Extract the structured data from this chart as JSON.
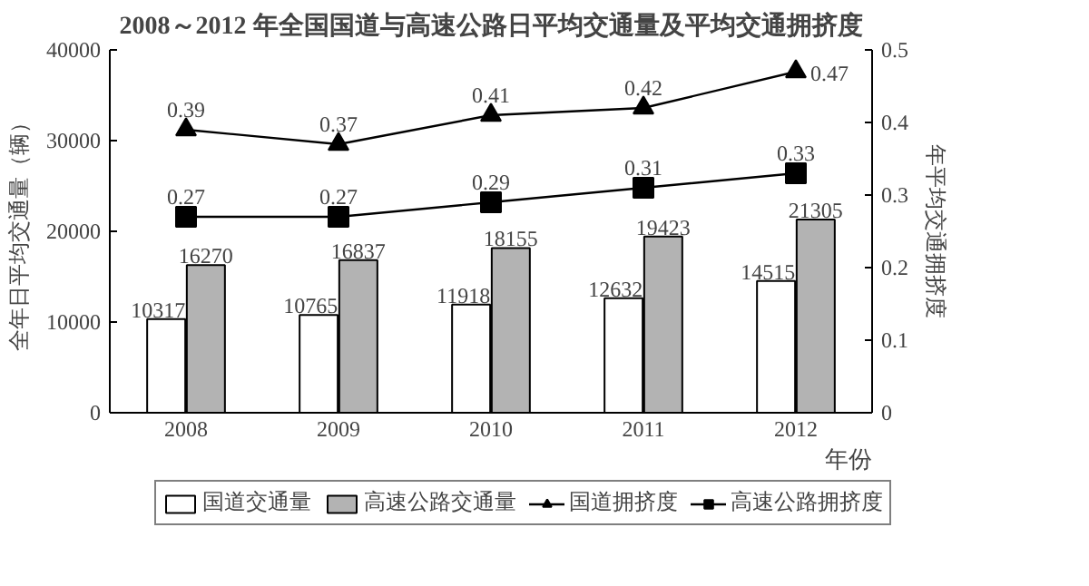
{
  "chart_data": {
    "type": "bar",
    "title": "2008～2012 年全国国道与高速公路日平均交通量及平均交通拥挤度",
    "categories": [
      "2008",
      "2009",
      "2010",
      "2011",
      "2012"
    ],
    "xlabel": "年份",
    "ylabel": "全年日平均交通量（辆）",
    "y2label": "年平均交通拥挤度",
    "ylim": [
      0,
      40000
    ],
    "yticks": [
      0,
      10000,
      20000,
      30000,
      40000
    ],
    "y2lim": [
      0,
      0.5
    ],
    "y2ticks": [
      0,
      0.1,
      0.2,
      0.3,
      0.4,
      0.5
    ],
    "grid": false,
    "legend": "bottom",
    "data_labels": true,
    "series": [
      {
        "name": "国道交通量",
        "color": "#ffffff",
        "values": [
          10317,
          10765,
          11918,
          12632,
          14515
        ]
      },
      {
        "name": "高速公路交通量",
        "color": "#b3b3b3",
        "values": [
          16270,
          16837,
          18155,
          19423,
          21305
        ]
      },
      {
        "name": "国道拥挤度",
        "type": "line",
        "axis": "y2",
        "marker": "triangle",
        "color": "#000000",
        "values": [
          0.39,
          0.37,
          0.41,
          0.42,
          0.47
        ]
      },
      {
        "name": "高速公路拥挤度",
        "type": "line",
        "axis": "y2",
        "marker": "square",
        "color": "#000000",
        "values": [
          0.27,
          0.27,
          0.29,
          0.31,
          0.33
        ]
      }
    ]
  }
}
